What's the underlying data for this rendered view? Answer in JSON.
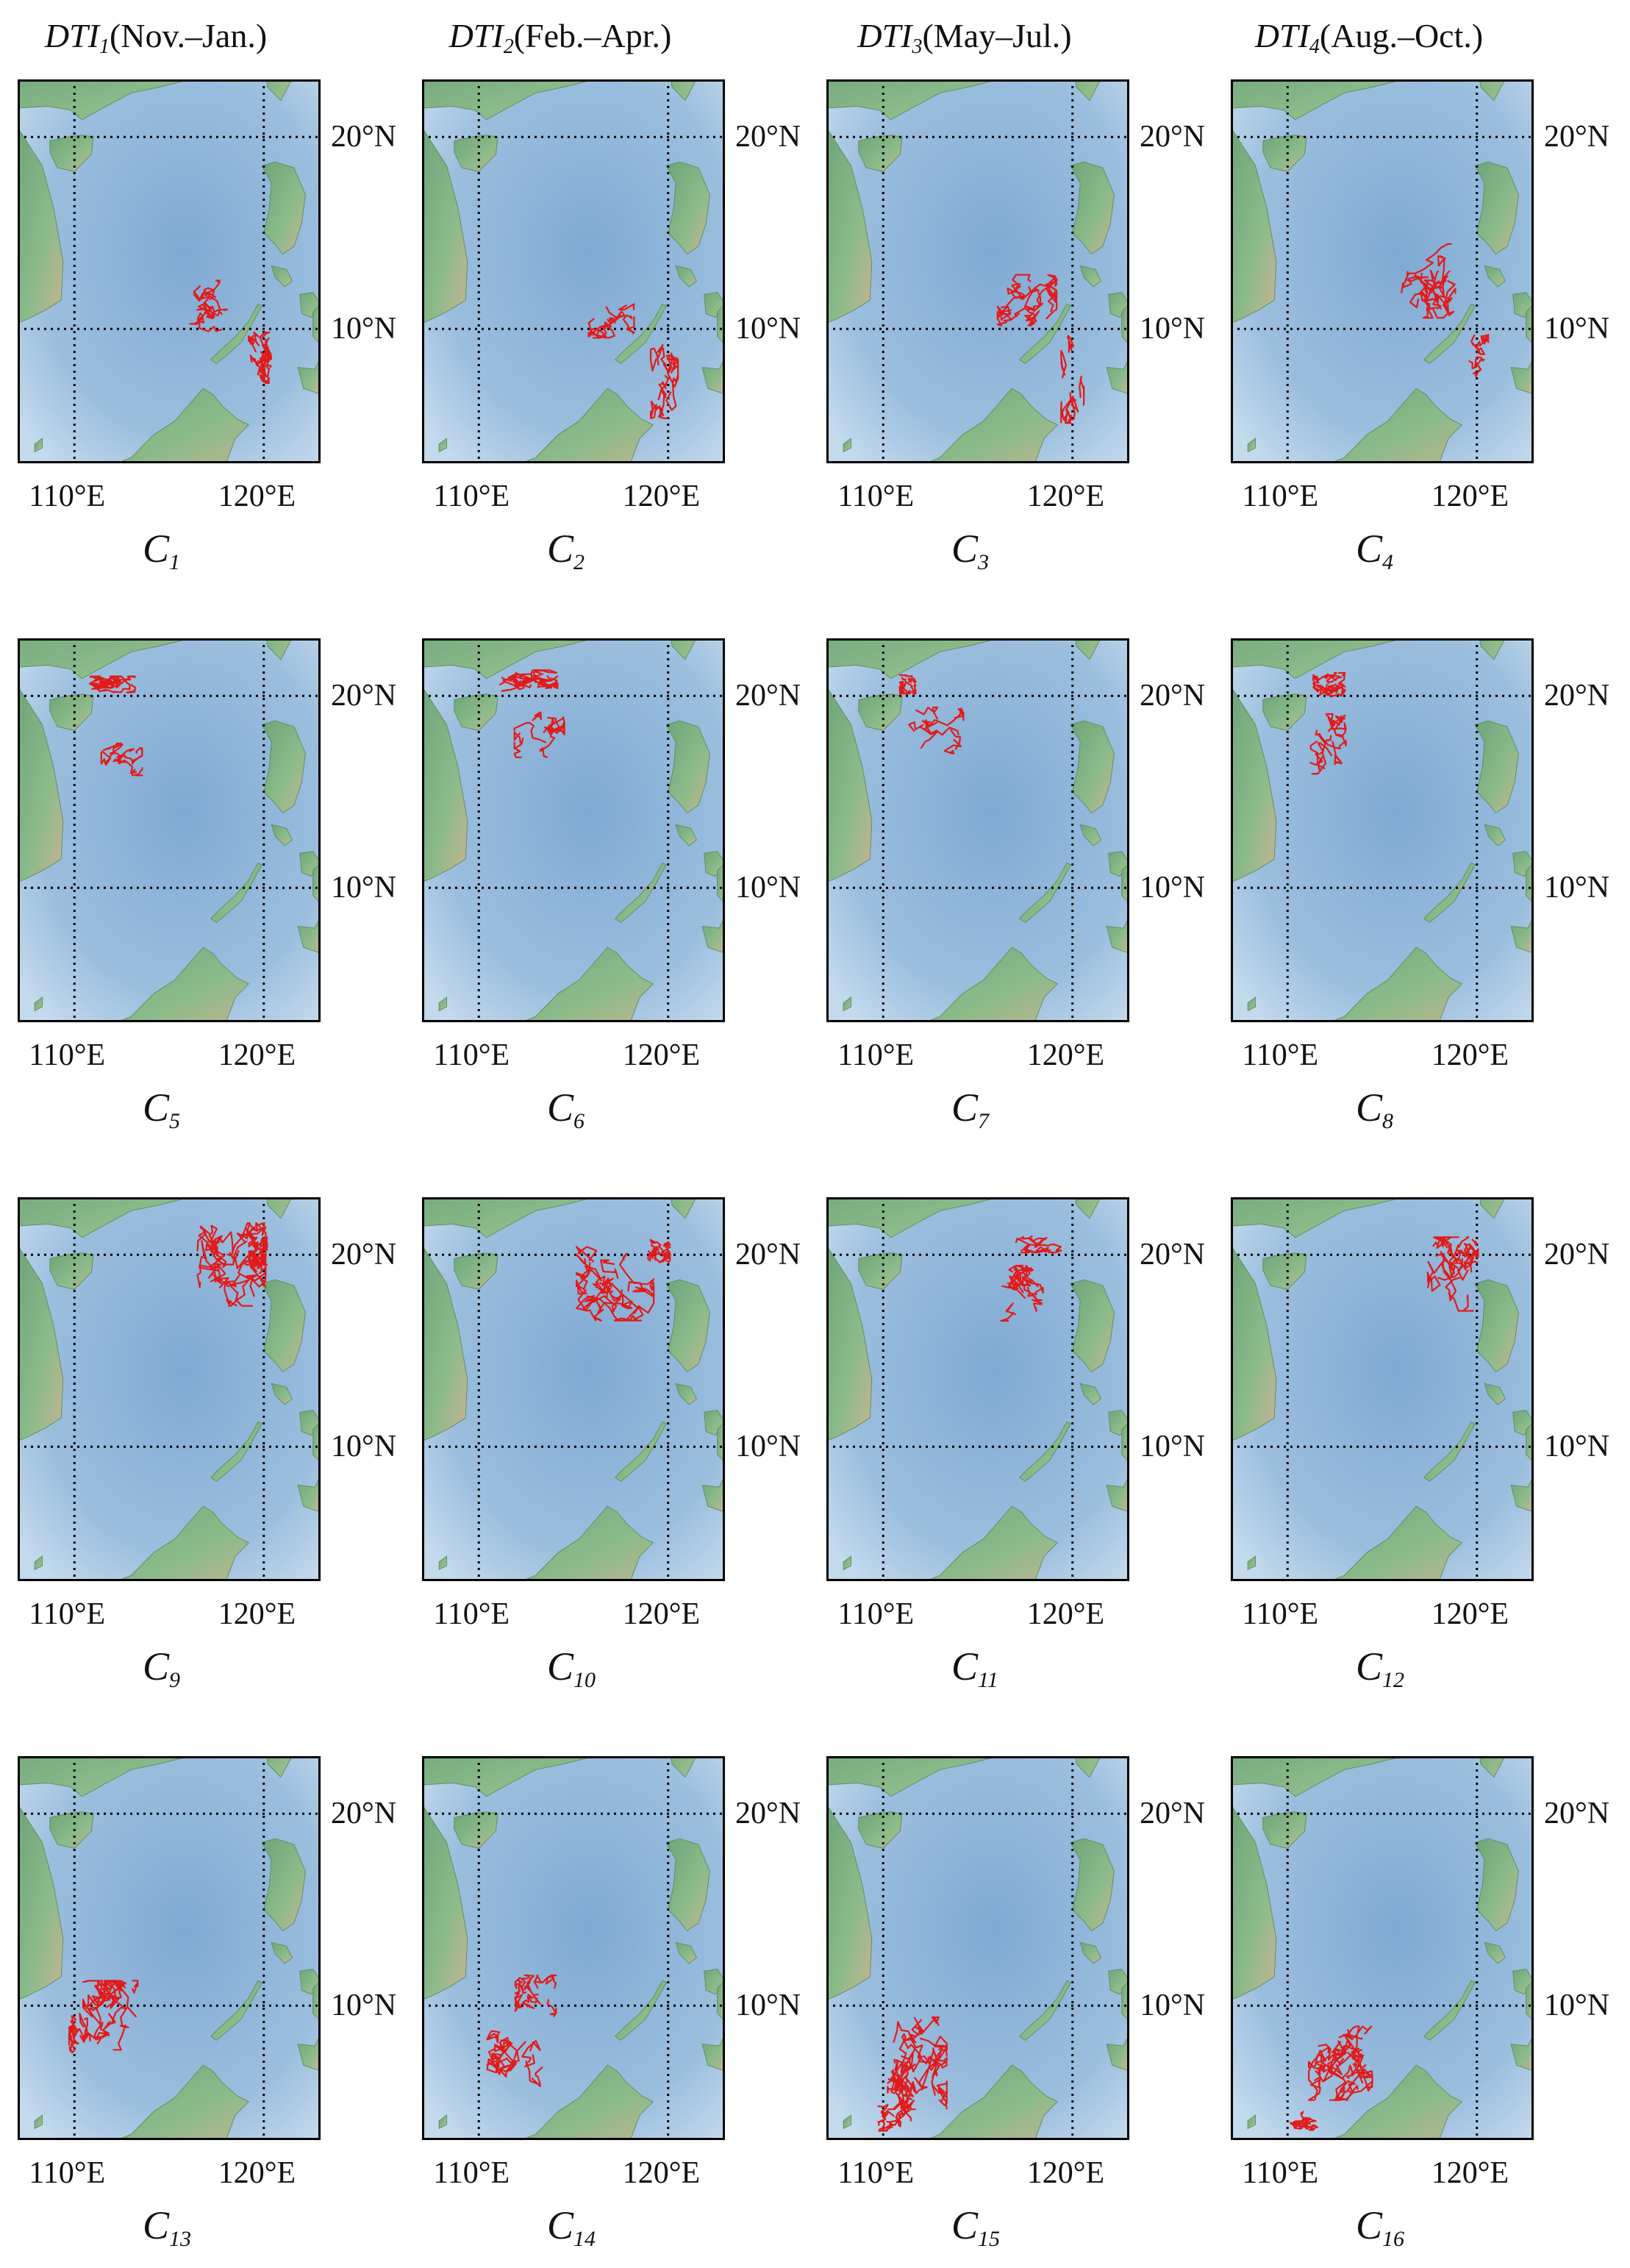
{
  "column_headers": [
    {
      "prefix": "DTI",
      "sub": "1",
      "period": "(Nov.–Jan.)"
    },
    {
      "prefix": "DTI",
      "sub": "2",
      "period": "(Feb.–Apr.)"
    },
    {
      "prefix": "DTI",
      "sub": "3",
      "period": "(May–Jul.)"
    },
    {
      "prefix": "DTI",
      "sub": "4",
      "period": "(Aug.–Oct.)"
    }
  ],
  "axes": {
    "lon_min": 107,
    "lon_max": 123,
    "lat_min": 3,
    "lat_max": 23,
    "lon_ticks": [
      110,
      120
    ],
    "lon_tick_labels": [
      "110°E",
      "120°E"
    ],
    "lat_ticks": [
      20,
      10
    ],
    "lat_tick_labels": [
      "20°N",
      "10°N"
    ],
    "grid": "dotted"
  },
  "colors": {
    "track": "#e21a1a",
    "ocean": "#a9c8e2",
    "land": "#8cba8a",
    "grid": "#000000"
  },
  "panels": [
    {
      "id": "C1",
      "letter": "C",
      "sub": "1",
      "clusters": [
        {
          "lon": 117.0,
          "lat": 11.2,
          "sx": 1.0,
          "sy": 1.1,
          "n": 9,
          "seed": 11
        },
        {
          "lon": 119.8,
          "lat": 8.5,
          "sx": 0.5,
          "sy": 1.1,
          "n": 11,
          "seed": 12
        }
      ]
    },
    {
      "id": "C2",
      "letter": "C",
      "sub": "2",
      "clusters": [
        {
          "lon": 117.0,
          "lat": 10.5,
          "sx": 1.0,
          "sy": 0.8,
          "n": 7,
          "seed": 21
        },
        {
          "lon": 119.8,
          "lat": 7.5,
          "sx": 0.6,
          "sy": 1.8,
          "n": 11,
          "seed": 22
        }
      ]
    },
    {
      "id": "C3",
      "letter": "C",
      "sub": "3",
      "clusters": [
        {
          "lon": 117.6,
          "lat": 11.5,
          "sx": 1.3,
          "sy": 1.1,
          "n": 13,
          "seed": 31
        },
        {
          "lon": 120.0,
          "lat": 7.5,
          "sx": 0.5,
          "sy": 2.0,
          "n": 6,
          "seed": 32
        }
      ]
    },
    {
      "id": "C4",
      "letter": "C",
      "sub": "4",
      "clusters": [
        {
          "lon": 117.3,
          "lat": 12.5,
          "sx": 1.3,
          "sy": 1.6,
          "n": 14,
          "seed": 41
        },
        {
          "lon": 120.0,
          "lat": 8.5,
          "sx": 0.5,
          "sy": 1.0,
          "n": 5,
          "seed": 42
        }
      ]
    },
    {
      "id": "C5",
      "letter": "C",
      "sub": "5",
      "clusters": [
        {
          "lon": 112.0,
          "lat": 20.6,
          "sx": 1.0,
          "sy": 0.35,
          "n": 14,
          "seed": 51
        },
        {
          "lon": 112.5,
          "lat": 16.7,
          "sx": 0.9,
          "sy": 0.7,
          "n": 7,
          "seed": 52
        }
      ]
    },
    {
      "id": "C6",
      "letter": "C",
      "sub": "6",
      "clusters": [
        {
          "lon": 112.6,
          "lat": 20.8,
          "sx": 1.3,
          "sy": 0.45,
          "n": 14,
          "seed": 61
        },
        {
          "lon": 113.2,
          "lat": 18.0,
          "sx": 1.1,
          "sy": 1.0,
          "n": 8,
          "seed": 62
        }
      ]
    },
    {
      "id": "C7",
      "letter": "C",
      "sub": "7",
      "clusters": [
        {
          "lon": 111.3,
          "lat": 20.6,
          "sx": 0.35,
          "sy": 0.4,
          "n": 10,
          "seed": 71
        },
        {
          "lon": 112.8,
          "lat": 18.2,
          "sx": 1.2,
          "sy": 1.0,
          "n": 8,
          "seed": 72
        }
      ]
    },
    {
      "id": "C8",
      "letter": "C",
      "sub": "8",
      "clusters": [
        {
          "lon": 112.2,
          "lat": 20.6,
          "sx": 0.7,
          "sy": 0.5,
          "n": 12,
          "seed": 81
        },
        {
          "lon": 112.0,
          "lat": 17.5,
          "sx": 0.9,
          "sy": 1.3,
          "n": 9,
          "seed": 82
        }
      ]
    },
    {
      "id": "C9",
      "letter": "C",
      "sub": "9",
      "clusters": [
        {
          "lon": 118.3,
          "lat": 19.5,
          "sx": 1.5,
          "sy": 1.8,
          "n": 22,
          "seed": 91
        },
        {
          "lon": 119.7,
          "lat": 20.2,
          "sx": 0.4,
          "sy": 0.6,
          "n": 10,
          "seed": 92
        }
      ]
    },
    {
      "id": "C10",
      "letter": "C",
      "sub": "10",
      "clusters": [
        {
          "lon": 117.2,
          "lat": 18.5,
          "sx": 1.7,
          "sy": 1.6,
          "n": 18,
          "seed": 101
        },
        {
          "lon": 119.5,
          "lat": 20.2,
          "sx": 0.5,
          "sy": 0.5,
          "n": 10,
          "seed": 102
        }
      ]
    },
    {
      "id": "C11",
      "letter": "C",
      "sub": "11",
      "clusters": [
        {
          "lon": 117.0,
          "lat": 18.0,
          "sx": 1.2,
          "sy": 1.2,
          "n": 10,
          "seed": 111
        },
        {
          "lon": 118.2,
          "lat": 20.6,
          "sx": 1.0,
          "sy": 0.4,
          "n": 6,
          "seed": 112
        }
      ]
    },
    {
      "id": "C12",
      "letter": "C",
      "sub": "12",
      "clusters": [
        {
          "lon": 118.6,
          "lat": 19.0,
          "sx": 1.0,
          "sy": 1.6,
          "n": 14,
          "seed": 121
        },
        {
          "lon": 119.7,
          "lat": 20.2,
          "sx": 0.3,
          "sy": 0.5,
          "n": 6,
          "seed": 122
        }
      ]
    },
    {
      "id": "C13",
      "letter": "C",
      "sub": "13",
      "clusters": [
        {
          "lon": 111.9,
          "lat": 9.5,
          "sx": 1.2,
          "sy": 1.5,
          "n": 18,
          "seed": 131
        },
        {
          "lon": 110.2,
          "lat": 9.0,
          "sx": 0.4,
          "sy": 1.2,
          "n": 8,
          "seed": 132
        }
      ]
    },
    {
      "id": "C14",
      "letter": "C",
      "sub": "14",
      "clusters": [
        {
          "lon": 113.0,
          "lat": 10.5,
          "sx": 0.9,
          "sy": 0.9,
          "n": 10,
          "seed": 141
        },
        {
          "lon": 112.0,
          "lat": 7.0,
          "sx": 1.3,
          "sy": 1.4,
          "n": 12,
          "seed": 142
        }
      ]
    },
    {
      "id": "C15",
      "letter": "C",
      "sub": "15",
      "clusters": [
        {
          "lon": 111.8,
          "lat": 7.0,
          "sx": 1.3,
          "sy": 2.0,
          "n": 24,
          "seed": 151
        },
        {
          "lon": 110.5,
          "lat": 4.2,
          "sx": 0.8,
          "sy": 0.6,
          "n": 8,
          "seed": 152
        }
      ]
    },
    {
      "id": "C16",
      "letter": "C",
      "sub": "16",
      "clusters": [
        {
          "lon": 112.8,
          "lat": 7.0,
          "sx": 1.4,
          "sy": 1.6,
          "n": 20,
          "seed": 161
        },
        {
          "lon": 111.0,
          "lat": 4.0,
          "sx": 0.7,
          "sy": 0.4,
          "n": 8,
          "seed": 162
        }
      ]
    }
  ]
}
